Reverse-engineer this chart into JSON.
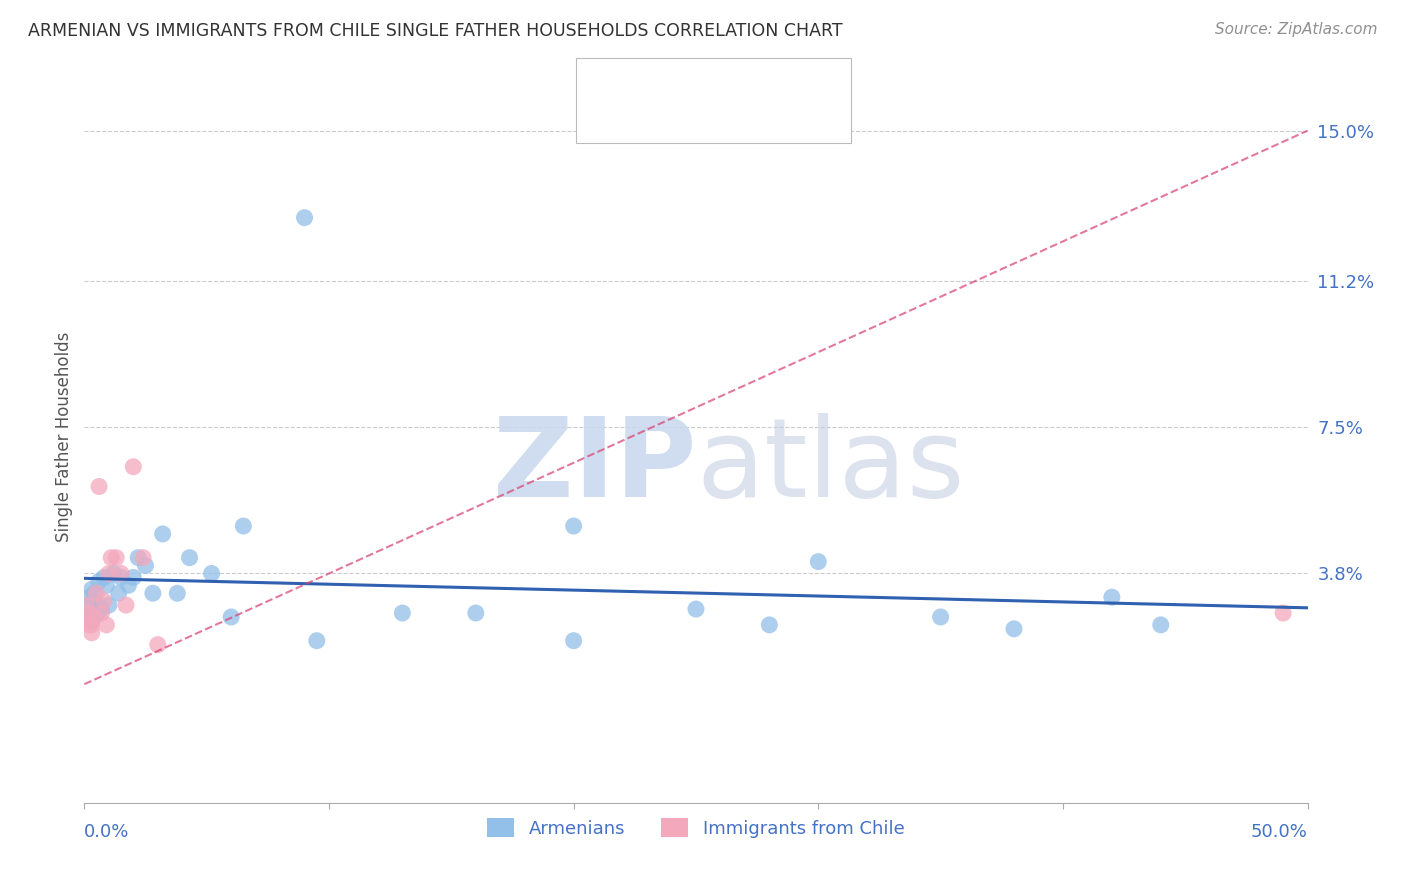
{
  "title": "ARMENIAN VS IMMIGRANTS FROM CHILE SINGLE FATHER HOUSEHOLDS CORRELATION CHART",
  "source": "Source: ZipAtlas.com",
  "ylabel": "Single Father Households",
  "ytick_labels": [
    "15.0%",
    "11.2%",
    "7.5%",
    "3.8%"
  ],
  "ytick_values": [
    0.15,
    0.112,
    0.075,
    0.038
  ],
  "xmin": 0.0,
  "xmax": 0.5,
  "ymin": -0.02,
  "ymax": 0.165,
  "armenian_x": [
    0.001,
    0.002,
    0.002,
    0.003,
    0.003,
    0.004,
    0.004,
    0.005,
    0.005,
    0.006,
    0.007,
    0.008,
    0.009,
    0.01,
    0.012,
    0.014,
    0.015,
    0.018,
    0.02,
    0.022,
    0.025,
    0.028,
    0.032,
    0.038,
    0.043,
    0.052,
    0.065,
    0.09,
    0.13,
    0.2,
    0.25,
    0.28,
    0.3,
    0.35,
    0.38,
    0.42,
    0.44,
    0.2,
    0.16,
    0.095,
    0.06
  ],
  "armenian_y": [
    0.03,
    0.028,
    0.032,
    0.034,
    0.026,
    0.033,
    0.031,
    0.03,
    0.028,
    0.036,
    0.029,
    0.037,
    0.035,
    0.03,
    0.038,
    0.033,
    0.037,
    0.035,
    0.037,
    0.042,
    0.04,
    0.033,
    0.048,
    0.033,
    0.042,
    0.038,
    0.05,
    0.128,
    0.028,
    0.021,
    0.029,
    0.025,
    0.041,
    0.027,
    0.024,
    0.032,
    0.025,
    0.05,
    0.028,
    0.021,
    0.027
  ],
  "chile_x": [
    0.001,
    0.002,
    0.002,
    0.003,
    0.003,
    0.004,
    0.005,
    0.006,
    0.007,
    0.008,
    0.009,
    0.01,
    0.011,
    0.013,
    0.015,
    0.017,
    0.02,
    0.024,
    0.03,
    0.49
  ],
  "chile_y": [
    0.03,
    0.028,
    0.025,
    0.025,
    0.023,
    0.027,
    0.033,
    0.06,
    0.028,
    0.031,
    0.025,
    0.038,
    0.042,
    0.042,
    0.038,
    0.03,
    0.065,
    0.042,
    0.02,
    0.028
  ],
  "color_armenian": "#92C0E8",
  "color_chile": "#F4A8BC",
  "color_trendline_armenian": "#3060B0",
  "color_trendline_chile": "#D84070",
  "color_axis_labels": "#4472C4",
  "color_title": "#404040",
  "color_source": "#909090",
  "background_color": "#FFFFFF",
  "grid_color": "#CCCCCC"
}
